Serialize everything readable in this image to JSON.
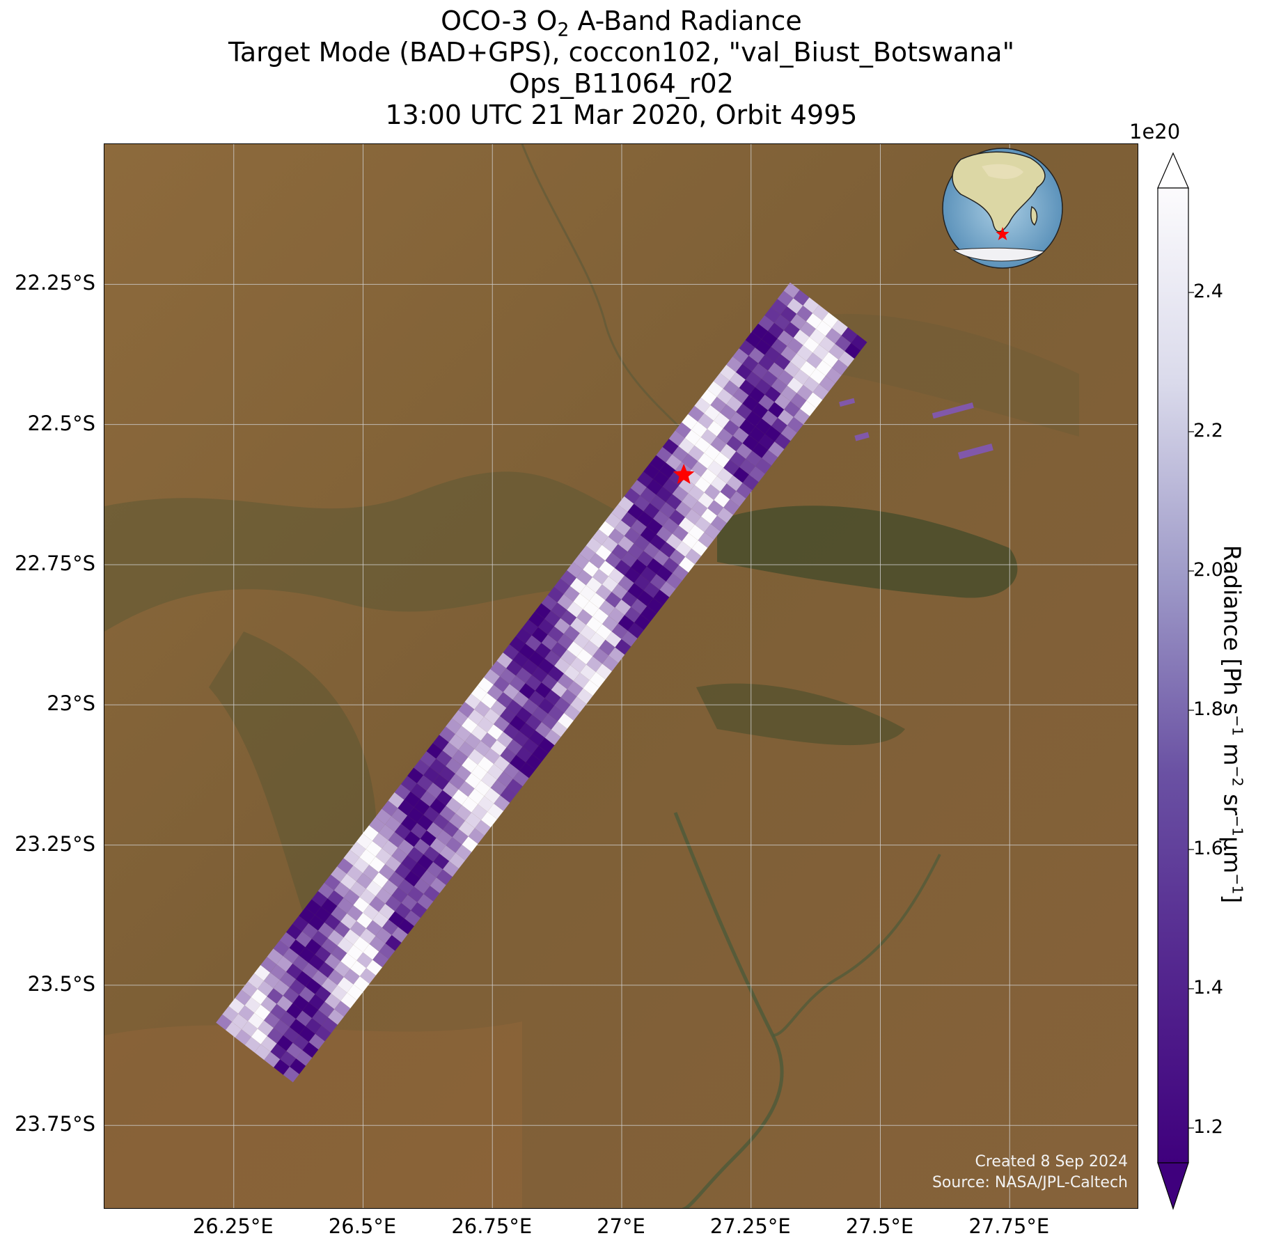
{
  "title": {
    "line1_prefix": "OCO-3 O",
    "line1_sub": "2",
    "line1_suffix": " A-Band Radiance",
    "line2": "Target Mode (BAD+GPS), coccon102, \"val_Biust_Botswana\"",
    "line3": "Ops_B11064_r02",
    "line4": "13:00 UTC 21 Mar 2020, Orbit 4995"
  },
  "map": {
    "lat_ticks": [
      "22.25°S",
      "22.5°S",
      "22.75°S",
      "23°S",
      "23.25°S",
      "23.5°S",
      "23.75°S"
    ],
    "lon_ticks": [
      "26.25°E",
      "26.5°E",
      "26.75°E",
      "27°E",
      "27.25°E",
      "27.5°E",
      "27.75°E"
    ],
    "lat_values": [
      -22.25,
      -22.5,
      -22.75,
      -23.0,
      -23.25,
      -23.5,
      -23.75
    ],
    "lon_values": [
      26.25,
      26.5,
      26.75,
      27.0,
      27.25,
      27.5,
      27.75
    ],
    "lon_range": [
      26.0,
      28.0
    ],
    "lat_range": [
      -23.9,
      -22.0
    ],
    "target_site": {
      "name": "val_Biust_Botswana",
      "lon": 27.12,
      "lat": -22.59,
      "marker": "red-star"
    },
    "inset": "globe-africa-locator",
    "basemap": "satellite-imagery"
  },
  "credits": {
    "line1": "Created 8 Sep 2024",
    "line2": "Source: NASA/JPL-Caltech"
  },
  "colorbar": {
    "exponent_label": "1e20",
    "ticks": [
      "1.2",
      "1.4",
      "1.6",
      "1.8",
      "2.0",
      "2.2",
      "2.4"
    ],
    "tick_values": [
      1.2,
      1.4,
      1.6,
      1.8,
      2.0,
      2.2,
      2.4
    ],
    "range": [
      1.15,
      2.55
    ],
    "extend": "both",
    "colormap": "Purples_r",
    "label_text": "Radiance [Ph s⁻¹ m⁻² sr⁻¹μm⁻¹]",
    "label_parts": [
      "Radiance [Ph s",
      "−1",
      " m",
      "−2",
      " sr",
      "−1",
      "μm",
      "−1",
      "]"
    ]
  },
  "colors": {
    "swath_low": "#3f007d",
    "swath_high": "#fcfbfd",
    "target_marker": "#ff0000",
    "gridline": "#d0d0d0"
  },
  "chart_data": {
    "type": "heatmap",
    "title": "OCO-3 O2 A-Band Radiance",
    "xlabel": "",
    "ylabel": "",
    "xlim": [
      26.0,
      28.0
    ],
    "ylim": [
      -23.9,
      -22.0
    ],
    "value_units": "Ph s-1 m-2 sr-1 μm-1 (×1e20)",
    "value_range": [
      1.15,
      2.55
    ],
    "swath_centerline": [
      {
        "lon": 26.29,
        "lat": -23.62
      },
      {
        "lon": 26.6,
        "lat": -23.25
      },
      {
        "lon": 26.9,
        "lat": -22.9
      },
      {
        "lon": 27.15,
        "lat": -22.6
      },
      {
        "lon": 27.4,
        "lat": -22.3
      }
    ]
  }
}
